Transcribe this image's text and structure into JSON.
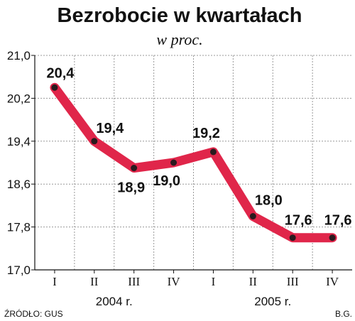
{
  "chart_data": {
    "type": "line",
    "title": "Bezrobocie w kwartałach",
    "subtitle": "w proc.",
    "categories": [
      "I",
      "II",
      "III",
      "IV",
      "I",
      "II",
      "III",
      "IV"
    ],
    "year_labels": [
      "2004 r.",
      "2005 r."
    ],
    "series": [
      {
        "values": [
          20.4,
          19.4,
          18.9,
          19.0,
          19.2,
          18.0,
          17.6,
          17.6
        ]
      }
    ],
    "data_labels": [
      "20,4",
      "19,4",
      "18,9",
      "19,0",
      "19,2",
      "18,0",
      "17,6",
      "17,6"
    ],
    "yticks": [
      17.0,
      17.8,
      18.6,
      19.4,
      20.2,
      21.0
    ],
    "ytick_labels": [
      "17,0",
      "17,8",
      "18,6",
      "19,4",
      "20,2",
      "21,0"
    ],
    "ylim": [
      17.0,
      21.0
    ],
    "grid": true,
    "line_color": "#e0264a",
    "marker_color": "#2a1a1e",
    "source": "ŹRÓDŁO: GUS",
    "author": "B.G."
  }
}
